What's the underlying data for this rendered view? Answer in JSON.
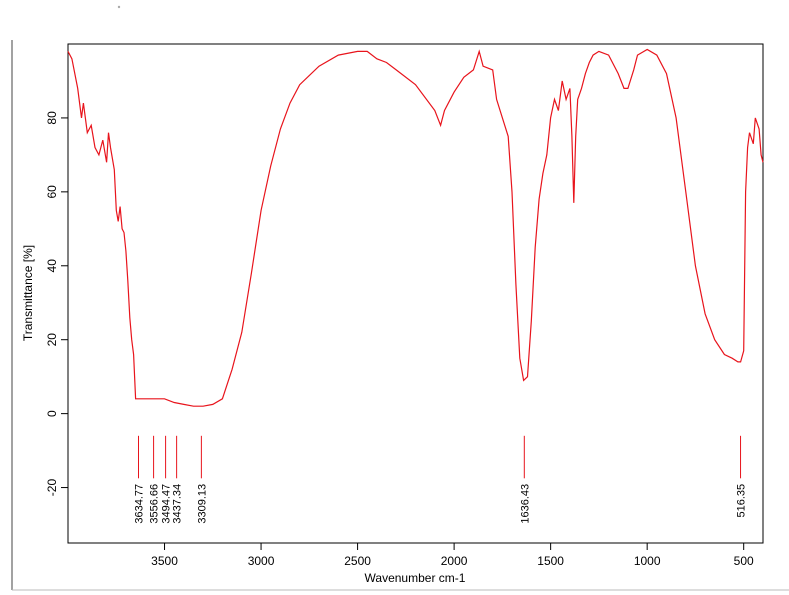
{
  "chart_data": {
    "type": "line",
    "x_label": "Wavenumber cm-1",
    "y_label": "Transmittance [%]",
    "x": [
      4000,
      3980,
      3950,
      3930,
      3920,
      3900,
      3880,
      3860,
      3840,
      3820,
      3800,
      3790,
      3780,
      3760,
      3750,
      3740,
      3730,
      3720,
      3710,
      3700,
      3690,
      3680,
      3670,
      3660,
      3650,
      3600,
      3550,
      3500,
      3450,
      3400,
      3350,
      3300,
      3250,
      3200,
      3150,
      3100,
      3050,
      3000,
      2950,
      2900,
      2850,
      2800,
      2700,
      2600,
      2500,
      2450,
      2400,
      2350,
      2300,
      2200,
      2100,
      2070,
      2050,
      2000,
      1950,
      1900,
      1870,
      1850,
      1800,
      1780,
      1750,
      1720,
      1700,
      1680,
      1660,
      1640,
      1620,
      1600,
      1580,
      1560,
      1540,
      1520,
      1500,
      1480,
      1460,
      1440,
      1420,
      1400,
      1390,
      1380,
      1370,
      1360,
      1340,
      1320,
      1300,
      1280,
      1250,
      1200,
      1150,
      1120,
      1100,
      1070,
      1050,
      1000,
      950,
      900,
      850,
      800,
      750,
      700,
      650,
      600,
      560,
      530,
      516,
      500,
      490,
      480,
      470,
      450,
      440,
      420,
      410,
      400
    ],
    "series": [
      {
        "color": "#e8141c",
        "values": [
          98,
          96,
          88,
          80,
          84,
          76,
          78,
          72,
          70,
          74,
          68,
          76,
          72,
          66,
          55,
          52,
          56,
          50,
          49,
          44,
          36,
          26,
          20,
          16,
          4,
          4,
          4,
          4,
          3,
          2.5,
          2,
          2,
          2.5,
          4,
          12,
          22,
          38,
          55,
          67,
          77,
          84,
          89,
          94,
          97,
          98,
          98,
          96,
          95,
          93,
          89,
          82,
          78,
          82,
          87,
          91,
          93,
          98,
          94,
          93,
          85,
          80,
          75,
          60,
          35,
          15,
          9,
          10,
          25,
          45,
          58,
          65,
          70,
          80,
          85,
          82,
          90,
          85,
          88,
          75,
          57,
          75,
          85,
          88,
          92,
          95,
          97,
          98,
          97,
          92,
          88,
          88,
          93,
          97,
          98.5,
          97,
          92,
          80,
          60,
          40,
          27,
          20,
          16,
          15,
          14,
          14,
          17,
          60,
          72,
          76,
          73,
          80,
          77,
          70,
          68
        ]
      }
    ],
    "peaks": [
      3634.77,
      3556.66,
      3494.47,
      3437.34,
      3309.13,
      1636.43,
      516.35
    ],
    "xlim": [
      4000,
      400
    ],
    "xticks": [
      3500,
      3000,
      2500,
      2000,
      1500,
      1000,
      500
    ],
    "ylim": [
      -35,
      100
    ],
    "yticks": [
      -20,
      0,
      20,
      40,
      60,
      80
    ]
  }
}
